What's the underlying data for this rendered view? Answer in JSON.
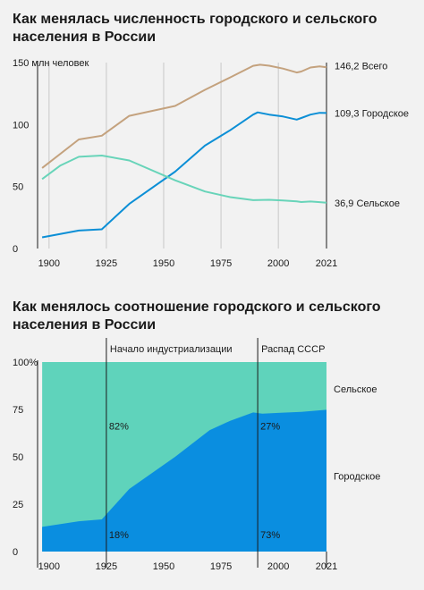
{
  "chart1": {
    "title_line1": "Как менялась численность городского и сельского",
    "title_line2": "населения в России",
    "unit_label": "150 млн человек"
  },
  "chart2": {
    "title_line1": "Как менялось соотношение городского и сельского",
    "title_line2": "населения в России"
  },
  "colors": {
    "total": "#c4a27e",
    "urban": "#0c8fd6",
    "rural": "#68d4b9",
    "rural_area": "#5fd3bb",
    "urban_area": "#0a8ee0"
  },
  "chart_data": [
    {
      "type": "line",
      "title": "Как менялась численность городского и сельского населения в России",
      "ylabel": "150 млн человек",
      "xlim": [
        1895,
        2021
      ],
      "ylim": [
        0,
        150
      ],
      "xticks": [
        1900,
        1925,
        1950,
        1975,
        2000,
        2021
      ],
      "yticks": [
        0,
        50,
        100,
        150
      ],
      "ytick_labels": [
        "0",
        "50",
        "100",
        "150 млн человек"
      ],
      "grid": "vertical",
      "series": [
        {
          "name": "Всего",
          "end_label": "146,2",
          "color": "#c4a27e",
          "x": [
            1897,
            1913,
            1923,
            1935,
            1955,
            1968,
            1979,
            1989,
            1992,
            1996,
            2002,
            2008,
            2010,
            2014,
            2018,
            2021
          ],
          "y": [
            65,
            88,
            91,
            107,
            115,
            128,
            138,
            147.4,
            148.3,
            147.5,
            145.2,
            142,
            142.8,
            146,
            146.9,
            146.2
          ]
        },
        {
          "name": "Городское",
          "end_label": "109,3",
          "color": "#0c8fd6",
          "x": [
            1897,
            1913,
            1923,
            1935,
            1955,
            1968,
            1979,
            1989,
            1991,
            1996,
            2002,
            2008,
            2010,
            2014,
            2018,
            2021
          ],
          "y": [
            9,
            14.5,
            15.5,
            36,
            62,
            83,
            95.4,
            108,
            109.8,
            108,
            106.5,
            104,
            105.3,
            108,
            109.5,
            109.3
          ]
        },
        {
          "name": "Сельское",
          "end_label": "36,9",
          "color": "#68d4b9",
          "x": [
            1897,
            1905,
            1913,
            1923,
            1935,
            1955,
            1968,
            1979,
            1989,
            1996,
            2002,
            2008,
            2010,
            2014,
            2018,
            2021
          ],
          "y": [
            56,
            67,
            74,
            75,
            71,
            55,
            46,
            41.5,
            39,
            39.3,
            38.7,
            38,
            37.5,
            37.9,
            37.4,
            36.9
          ]
        }
      ]
    },
    {
      "type": "area",
      "title": "Как менялось соотношение городского и сельского населения в России",
      "xlim": [
        1895,
        2021
      ],
      "ylim": [
        0,
        100
      ],
      "xticks": [
        1900,
        1925,
        1950,
        1975,
        2000,
        2021
      ],
      "yticks": [
        0,
        25,
        50,
        75,
        100
      ],
      "ytick_labels": [
        "0",
        "25",
        "50",
        "75",
        "100%"
      ],
      "stacked": true,
      "x": [
        1897,
        1913,
        1923,
        1935,
        1955,
        1970,
        1979,
        1989,
        1993,
        2002,
        2010,
        2021
      ],
      "series": [
        {
          "name": "Городское",
          "values": [
            13,
            16,
            17,
            33,
            50,
            64,
            69,
            73.4,
            72.8,
            73.3,
            73.7,
            74.8
          ]
        },
        {
          "name": "Сельское",
          "values": [
            87,
            84,
            83,
            67,
            50,
            36,
            31,
            26.6,
            27.2,
            26.7,
            26.3,
            25.2
          ]
        }
      ],
      "annotations": [
        {
          "x": 1925,
          "label": "Начало индустриализации",
          "urban_pct": "18%",
          "rural_pct": "82%"
        },
        {
          "x": 1991,
          "label": "Распад СССР",
          "urban_pct": "73%",
          "rural_pct": "27%"
        }
      ]
    }
  ]
}
